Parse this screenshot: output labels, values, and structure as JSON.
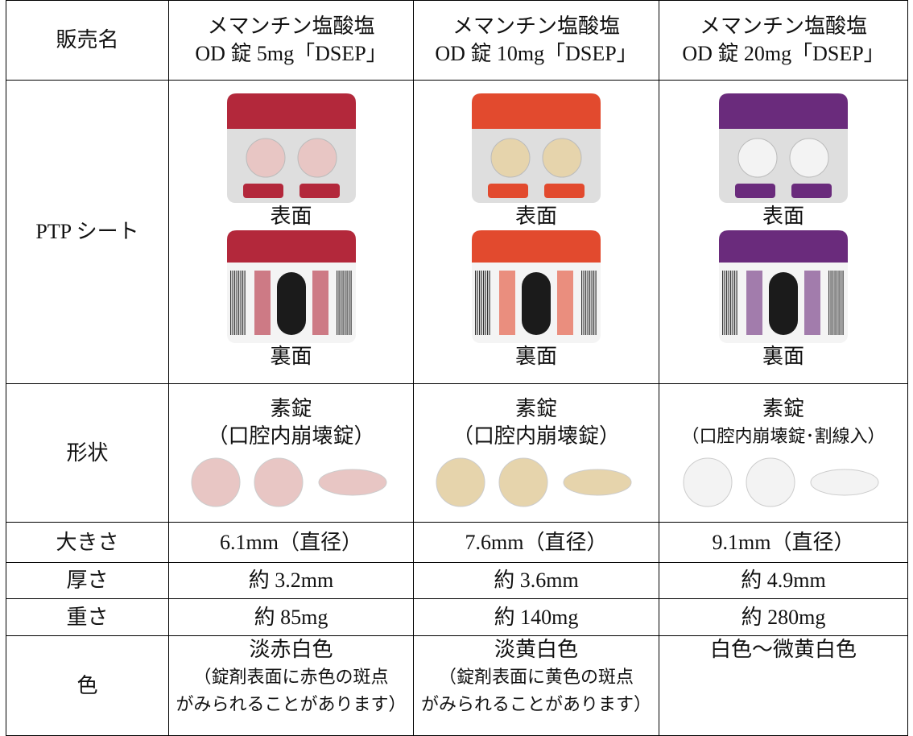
{
  "table": {
    "label_header": "販売名",
    "products": [
      {
        "line1": "メマンチン塩酸塩",
        "line2": "OD 錠 5mg「DSEP」"
      },
      {
        "line1": "メマンチン塩酸塩",
        "line2": "OD 錠 10mg「DSEP」"
      },
      {
        "line1": "メマンチン塩酸塩",
        "line2": "OD 錠 20mg「DSEP」"
      }
    ],
    "ptp": {
      "label": "PTP シート",
      "cells": [
        {
          "front": "表面",
          "back": "裏面"
        },
        {
          "front": "表面",
          "back": "裏面"
        },
        {
          "front": "表面",
          "back": "裏面"
        }
      ]
    },
    "shape": {
      "label": "形状",
      "cells": [
        {
          "line1": "素錠",
          "line2": "（口腔内崩壊錠）"
        },
        {
          "line1": "素錠",
          "line2": "（口腔内崩壊錠）"
        },
        {
          "line1": "素錠",
          "line2": "（口腔内崩壊錠･割線入）"
        }
      ]
    },
    "size": {
      "label": "大きさ",
      "cells": [
        "6.1mm（直径）",
        "7.6mm（直径）",
        "9.1mm（直径）"
      ]
    },
    "thickness": {
      "label": "厚さ",
      "cells": [
        "約 3.2mm",
        "約 3.6mm",
        "約 4.9mm"
      ]
    },
    "weight": {
      "label": "重さ",
      "cells": [
        "約 85mg",
        "約 140mg",
        "約 280mg"
      ]
    },
    "color": {
      "label": "色",
      "cells": [
        {
          "line1": "淡赤白色",
          "line2": "（錠剤表面に赤色の斑点",
          "line3": "がみられることがあります）"
        },
        {
          "line1": "淡黄白色",
          "line2": "（錠剤表面に黄色の斑点",
          "line3": "がみられることがあります）"
        },
        {
          "line1": "白色～微黄白色"
        }
      ]
    }
  }
}
